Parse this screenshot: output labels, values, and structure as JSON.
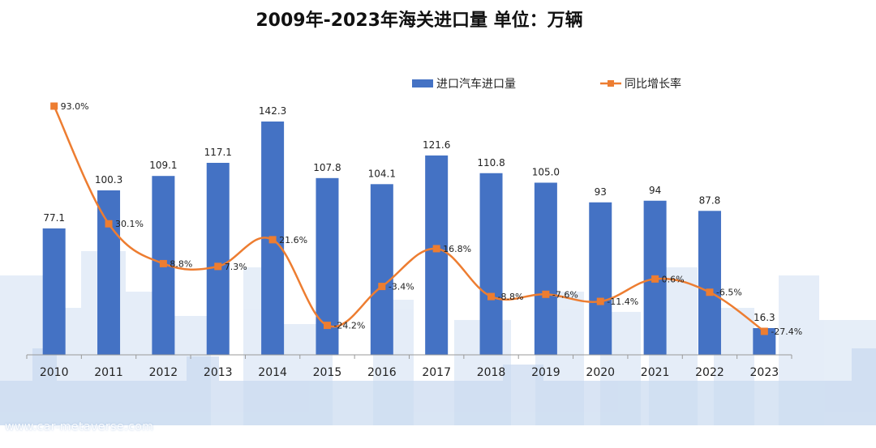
{
  "watermark": "www.car-metaverse.com",
  "chart_data": {
    "type": "bar",
    "title": "2009年-2023年海关进口量  单位：万辆",
    "categories": [
      "2010",
      "2011",
      "2012",
      "2013",
      "2014",
      "2015",
      "2016",
      "2017",
      "2018",
      "2019",
      "2020",
      "2021",
      "2022",
      "2023"
    ],
    "series": [
      {
        "name": "进口汽车进口量",
        "type": "bar",
        "color": "#4472C4",
        "values": [
          77.1,
          100.3,
          109.1,
          117.1,
          142.3,
          107.8,
          104.1,
          121.6,
          110.8,
          105.0,
          93,
          94,
          87.8,
          16.3
        ],
        "labels": [
          "77.1",
          "100.3",
          "109.1",
          "117.1",
          "142.3",
          "107.8",
          "104.1",
          "121.6",
          "110.8",
          "105.0",
          "93",
          "94",
          "87.8",
          "16.3"
        ]
      },
      {
        "name": "同比增长率",
        "type": "line",
        "color": "#ED7D31",
        "values": [
          93.0,
          30.1,
          8.8,
          7.3,
          21.6,
          -24.2,
          -3.4,
          16.8,
          -8.8,
          -7.6,
          -11.4,
          0.6,
          -6.5,
          -27.4
        ],
        "labels": [
          "93.0%",
          "30.1%",
          "8.8%",
          "7.3%",
          "21.6%",
          "-24.2%",
          "-3.4%",
          "16.8%",
          "-8.8%",
          "-7.6%",
          "-11.4%",
          "0.6%",
          "-6.5%",
          "-27.4%"
        ]
      }
    ],
    "xlabel": "",
    "ylabel": "",
    "bar_ylim": [
      0,
      150
    ],
    "line_ylim": [
      -35,
      100
    ],
    "grid": false,
    "legend_position": "top-right"
  }
}
